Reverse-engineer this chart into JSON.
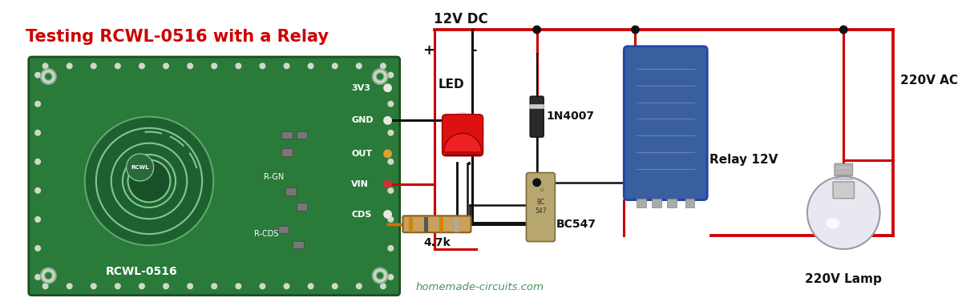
{
  "title": "Testing RCWL-0516 with a Relay",
  "title_color": "#cc0000",
  "title_fontsize": 15,
  "title_fontweight": "bold",
  "bg_color": "#ffffff",
  "watermark": "homemade-circuits.com",
  "watermark_color": "#4a9060",
  "labels": {
    "dc_supply": "12V DC",
    "plus": "+",
    "minus": "-",
    "led": "LED",
    "diode": "1N4007",
    "transistor": "BC547",
    "resistor": "4.7k",
    "relay": "Relay 12V",
    "ac": "220V AC",
    "lamp": "220V Lamp"
  },
  "pcb_bg": "#2a7a3a",
  "pcb_border": "#1a5020",
  "pcb_label_color": "#ffffff",
  "pcb_pins": [
    "3V3",
    "GND",
    "OUT",
    "VIN",
    "CDS"
  ],
  "red": "#cc0000",
  "black": "#111111",
  "orange": "#d47000",
  "relay_color": "#3a5fa0",
  "lw": 2.2
}
